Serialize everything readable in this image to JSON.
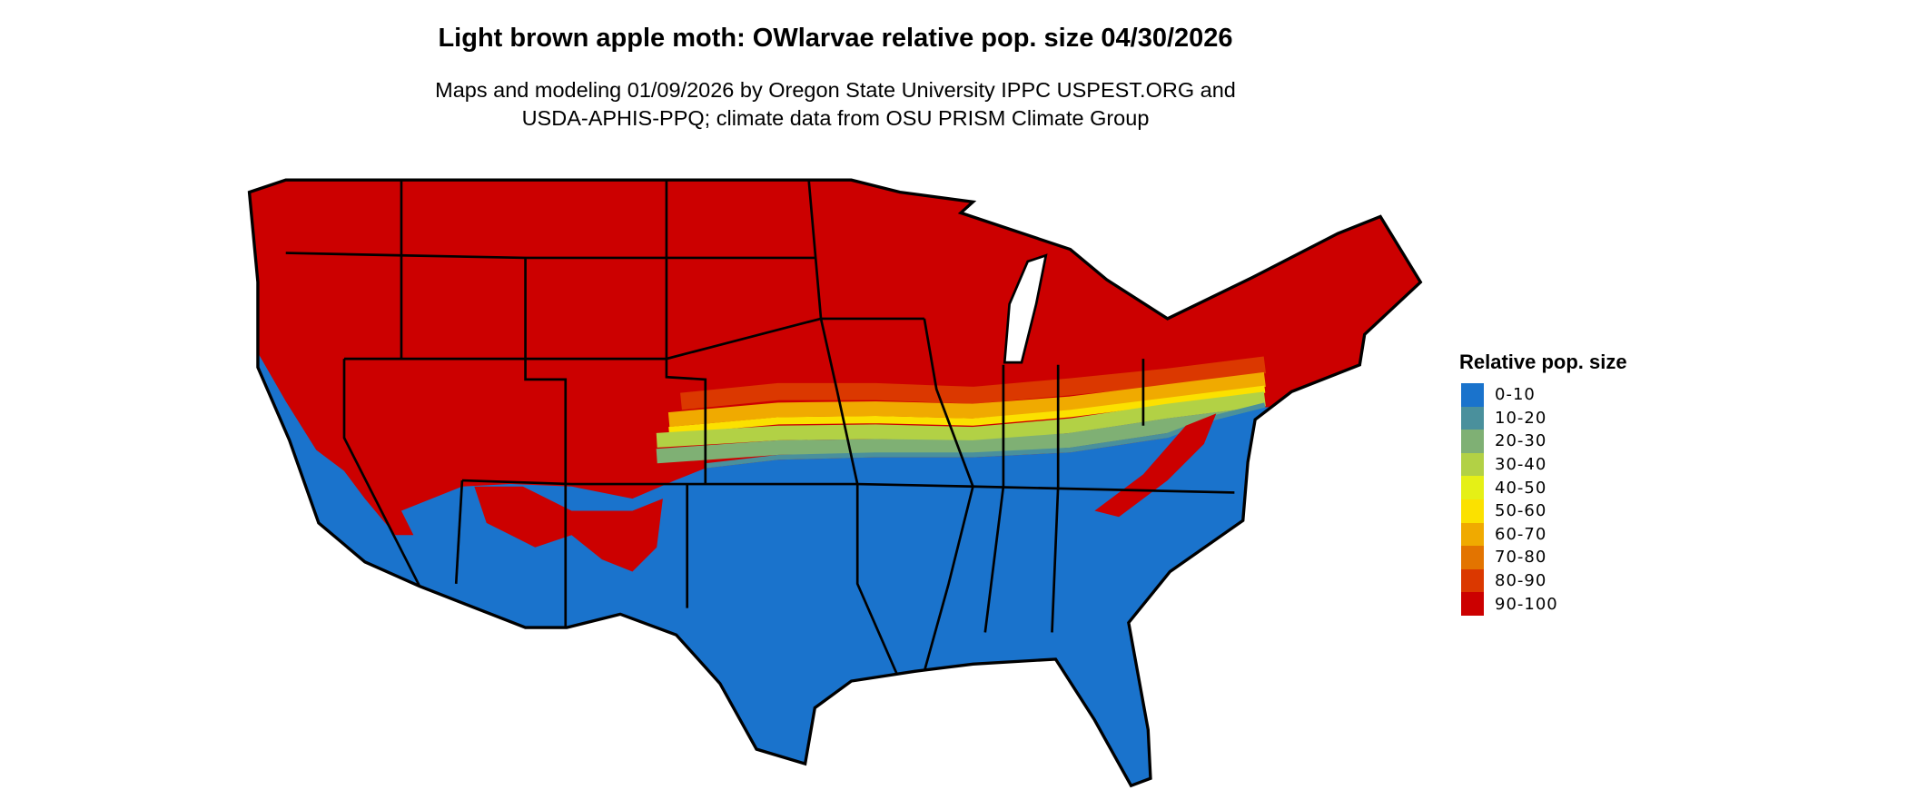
{
  "title": "Light brown apple moth: OWlarvae relative pop. size 04/30/2026",
  "subtitle_lines": [
    "Maps and modeling 01/09/2026 by Oregon State University IPPC USPEST.ORG and",
    "USDA-APHIS-PPQ; climate data from OSU PRISM Climate Group"
  ],
  "legend": {
    "title": "Relative pop. size",
    "items": [
      {
        "label": "0-10",
        "color": "#1a73cc"
      },
      {
        "label": "10-20",
        "color": "#4a909c"
      },
      {
        "label": "20-30",
        "color": "#7fb074"
      },
      {
        "label": "30-40",
        "color": "#b2d145"
      },
      {
        "label": "40-50",
        "color": "#e5f016"
      },
      {
        "label": "50-60",
        "color": "#fbe100"
      },
      {
        "label": "60-70",
        "color": "#f0aa00"
      },
      {
        "label": "70-80",
        "color": "#e37400"
      },
      {
        "label": "80-90",
        "color": "#db3800"
      },
      {
        "label": "90-100",
        "color": "#cc0000"
      }
    ]
  }
}
